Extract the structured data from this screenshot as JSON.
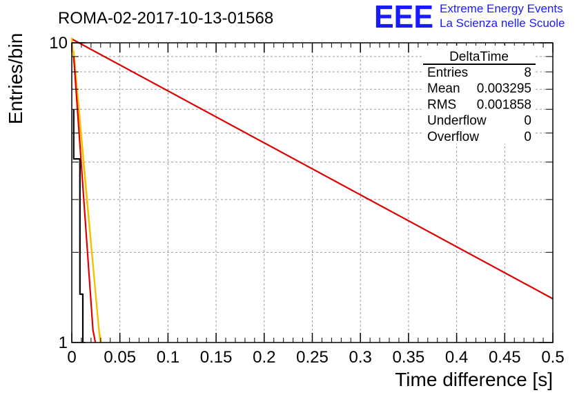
{
  "title": "ROMA-02-2017-10-13-01568",
  "logo": {
    "letters": "EEE",
    "line1": "Extreme Energy Events",
    "line2": "La Scienza nelle Scuole",
    "color": "#1a1aff"
  },
  "stats": {
    "name": "DeltaTime",
    "rows": [
      {
        "label": "Entries",
        "value": "8"
      },
      {
        "label": "Mean",
        "value": "0.003295"
      },
      {
        "label": "RMS",
        "value": "0.001858"
      },
      {
        "label": "Underflow",
        "value": "0"
      },
      {
        "label": "Overflow",
        "value": "0"
      }
    ]
  },
  "chart_data": {
    "type": "line",
    "title": "ROMA-02-2017-10-13-01568",
    "xlabel": "Time difference [s]",
    "ylabel": "Entries/bin",
    "xlim": [
      0,
      0.5
    ],
    "ylim": [
      1,
      10
    ],
    "yscale": "log",
    "grid": true,
    "x_ticks": [
      0,
      0.05,
      0.1,
      0.15,
      0.2,
      0.25,
      0.3,
      0.35,
      0.4,
      0.45,
      0.5
    ],
    "x_tick_labels": [
      "0",
      "0.05",
      "0.1",
      "0.15",
      "0.2",
      "0.25",
      "0.3",
      "0.35",
      "0.4",
      "0.45",
      "0.5"
    ],
    "y_ticks": [
      1,
      10
    ],
    "y_tick_labels": [
      "1",
      "10"
    ],
    "series": [
      {
        "color": "#dd0000",
        "x": [
          0.0,
          0.5
        ],
        "y": [
          10.3,
          1.4
        ]
      },
      {
        "color": "#f5c000",
        "x": [
          0.0,
          0.0295
        ],
        "y": [
          10.4,
          1.0
        ]
      },
      {
        "color": "#f5c000",
        "x": [
          0.002,
          0.028,
          0.0305
        ],
        "y": [
          9.4,
          1.12,
          1.0
        ]
      },
      {
        "color": "#dd0000",
        "x": [
          0.002,
          0.022,
          0.0245
        ],
        "y": [
          9.0,
          1.1,
          1.0
        ]
      },
      {
        "color": "#000000",
        "x": [
          0.002,
          0.002,
          0.0085,
          0.0085,
          0.0115,
          0.0115
        ],
        "y": [
          6.0,
          4.1,
          4.1,
          1.45,
          1.45,
          1.0
        ]
      }
    ]
  }
}
